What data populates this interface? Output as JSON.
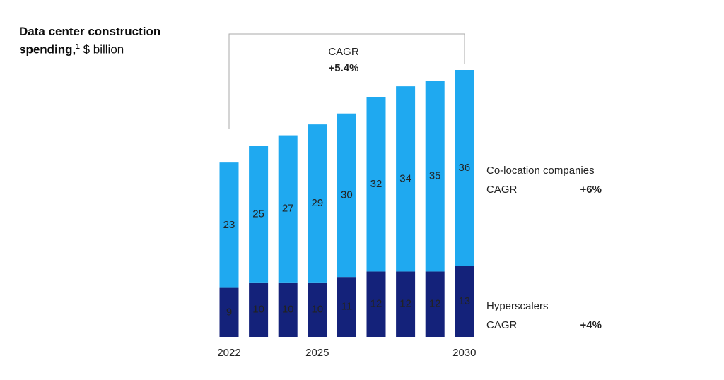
{
  "chart_data": {
    "type": "stacked-bar",
    "title": "Data center construction spending,",
    "title_footnote": "1",
    "unit": "$ billion",
    "categories": [
      "2022",
      null,
      null,
      "2025",
      null,
      null,
      null,
      null,
      "2030"
    ],
    "series": [
      {
        "name": "Hyperscalers",
        "color": "#14227a",
        "label_color": "#ffffff",
        "values": [
          9,
          10,
          10,
          10,
          11,
          12,
          12,
          12,
          13
        ],
        "cagr_label": "CAGR",
        "cagr": "+4%"
      },
      {
        "name": "Co-location companies",
        "color": "#1fa9f0",
        "label_color": "#0c1a3a",
        "values": [
          23,
          25,
          27,
          29,
          30,
          32,
          34,
          35,
          36
        ],
        "cagr_label": "CAGR",
        "cagr": "+6%"
      }
    ],
    "total_cagr_label": "CAGR",
    "total_cagr": "+5.4%"
  }
}
